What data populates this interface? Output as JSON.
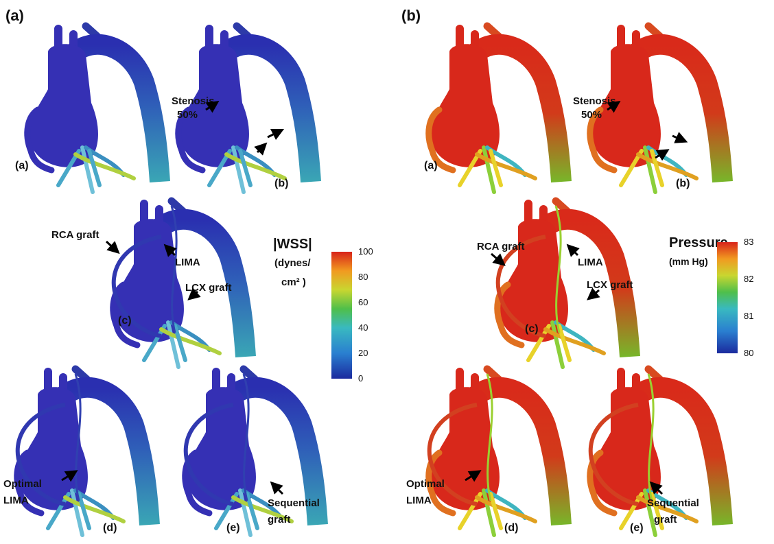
{
  "left": {
    "label": "(a)",
    "sublabels": [
      "(a)",
      "(b)",
      "(c)",
      "(d)",
      "(e)"
    ],
    "stenosis": [
      "Stenosis",
      "50%"
    ],
    "rca": "RCA graft",
    "lima": "LIMA",
    "lcx": "LCX graft",
    "optimal": [
      "Optimal",
      "LIMA"
    ],
    "sequential": [
      "Sequential",
      "graft"
    ],
    "colorbar": {
      "title": "|WSS|",
      "unit": [
        "(dynes/",
        "cm² )"
      ],
      "ticks": [
        100,
        80,
        60,
        40,
        20,
        0
      ]
    }
  },
  "right": {
    "label": "(b)",
    "sublabels": [
      "(a)",
      "(b)",
      "(c)",
      "(d)",
      "(e)"
    ],
    "stenosis": [
      "Stenosis",
      "50%"
    ],
    "rca": "RCA graft",
    "lima": "LIMA",
    "lcx": "LCX graft",
    "optimal": [
      "Optimal",
      "LIMA"
    ],
    "sequential": [
      "Sequential",
      "graft"
    ],
    "colorbar": {
      "title": "Pressure",
      "unit": [
        "(mm Hg)"
      ],
      "ticks": [
        83,
        82,
        81,
        80
      ]
    }
  }
}
